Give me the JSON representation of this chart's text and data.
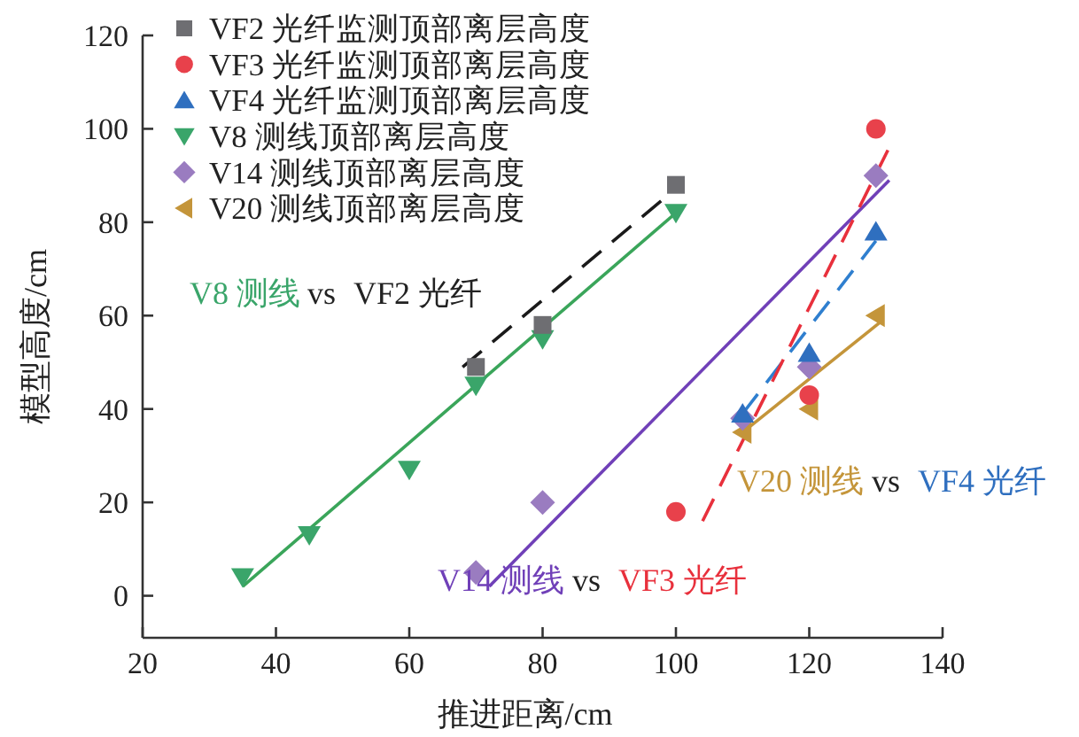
{
  "chart_data": {
    "type": "scatter",
    "xlabel": "推进距离/cm",
    "ylabel": "模型高度/cm",
    "xlim": [
      20,
      140
    ],
    "ylim": [
      -9,
      120
    ],
    "xticks": [
      20,
      40,
      60,
      80,
      100,
      120,
      140
    ],
    "yticks": [
      0,
      20,
      40,
      60,
      80,
      100,
      120
    ],
    "grid": false,
    "legend": "top left",
    "series": [
      {
        "name": "VF2 光纤监测顶部离层高度",
        "color": "#6e6e72",
        "marker": "square",
        "x": [
          70,
          80,
          100
        ],
        "values": [
          49,
          58,
          88
        ]
      },
      {
        "name": "VF3 光纤监测顶部离层高度",
        "color": "#e8414b",
        "marker": "circle",
        "x": [
          100,
          120,
          130
        ],
        "values": [
          18,
          43,
          100
        ]
      },
      {
        "name": "VF4 光纤监测顶部离层高度",
        "color": "#2f6fbf",
        "marker": "triangle",
        "x": [
          110,
          120,
          130
        ],
        "values": [
          39,
          52,
          78
        ]
      },
      {
        "name": "V8 测线顶部离层高度",
        "color": "#3aa56a",
        "marker": "triangle-down",
        "x": [
          35,
          45,
          60,
          70,
          80,
          100
        ],
        "values": [
          4,
          13,
          27,
          45,
          55,
          82
        ]
      },
      {
        "name": "V14 测线顶部离层高度",
        "color": "#9a7cc0",
        "marker": "diamond",
        "x": [
          70,
          80,
          110,
          120,
          130
        ],
        "values": [
          5,
          20,
          38,
          49,
          90
        ]
      },
      {
        "name": "V20 测线顶部离层高度",
        "color": "#c4953a",
        "marker": "triangle-left",
        "x": [
          110,
          120,
          130
        ],
        "values": [
          35,
          40,
          60
        ]
      },
      {
        "type": "line",
        "color": "#1a1a1a",
        "line_style": "dashed",
        "x": [
          68,
          99
        ],
        "values": [
          49,
          86
        ]
      },
      {
        "type": "line",
        "color": "#e8303c",
        "line_style": "dashed",
        "x": [
          104,
          132
        ],
        "values": [
          16,
          96
        ]
      },
      {
        "type": "line",
        "color": "#2f7fcf",
        "line_style": "dashed",
        "x": [
          110,
          130
        ],
        "values": [
          39,
          76
        ]
      },
      {
        "type": "line",
        "color": "#3aa55a",
        "line_style": "solid",
        "x": [
          35,
          100
        ],
        "values": [
          2,
          82
        ]
      },
      {
        "type": "line",
        "color": "#7040b8",
        "line_style": "solid",
        "x": [
          72,
          132
        ],
        "values": [
          2,
          89
        ]
      },
      {
        "type": "line",
        "color": "#c4953a",
        "line_style": "solid",
        "x": [
          110,
          131
        ],
        "values": [
          35,
          59
        ]
      }
    ],
    "annotations": [
      "V8 测线",
      "vs",
      "VF2 光纤",
      "V20 测线",
      "vs",
      "VF4 光纤",
      "V14 测线",
      "vs",
      "VF3 光纤"
    ]
  }
}
